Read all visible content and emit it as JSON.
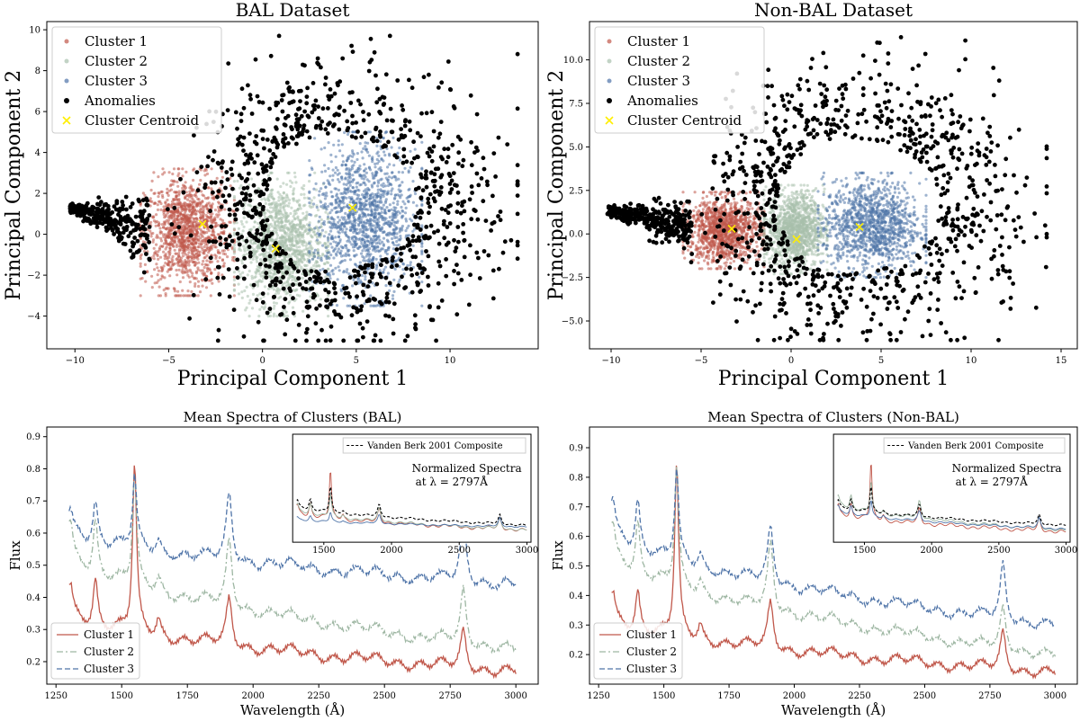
{
  "chart_data": [
    {
      "id": "bal_scatter",
      "type": "scatter",
      "title": "BAL Dataset",
      "xlabel": "Principal Component 1",
      "ylabel": "Principal Component 2",
      "xlim": [
        -11.5,
        14.7
      ],
      "ylim": [
        -5.6,
        10.4
      ],
      "xticks": [
        -10,
        -5,
        0,
        5,
        10
      ],
      "yticks": [
        -4,
        -2,
        0,
        2,
        4,
        6,
        8,
        10
      ],
      "legend": [
        "Cluster 1",
        "Cluster 2",
        "Cluster 3",
        "Anomalies",
        "Cluster Centroid"
      ],
      "legend_position": "upper-left",
      "colors": [
        "#c0574a",
        "#a8c0ac",
        "#4f74a8",
        "#000000",
        "#ffee00"
      ],
      "clusters": [
        {
          "name": "Cluster 1",
          "x_range": [
            -6.5,
            -1.5
          ],
          "y_range": [
            -3.0,
            3.2
          ],
          "n": 1300
        },
        {
          "name": "Cluster 2",
          "x_range": [
            -1.5,
            3.5
          ],
          "y_range": [
            -4.0,
            3.0
          ],
          "n": 1300
        },
        {
          "name": "Cluster 3",
          "x_range": [
            2.5,
            8.5
          ],
          "y_range": [
            -3.5,
            5.0
          ],
          "n": 1300
        }
      ],
      "centroids": [
        [
          -3.2,
          0.5
        ],
        [
          0.7,
          -0.7
        ],
        [
          4.8,
          1.3
        ]
      ],
      "anomalies_x_range": [
        -10.3,
        13.6
      ],
      "anomalies_y_range": [
        -5.2,
        9.7
      ]
    },
    {
      "id": "nonbal_scatter",
      "type": "scatter",
      "title": "Non-BAL Dataset",
      "xlabel": "Principal Component 1",
      "ylabel": "Principal Component 2",
      "xlim": [
        -11.2,
        15.9
      ],
      "ylim": [
        -6.6,
        12.2
      ],
      "xticks": [
        -10,
        -5,
        0,
        5,
        10,
        15
      ],
      "yticks": [
        -5.0,
        -2.5,
        0.0,
        2.5,
        5.0,
        7.5,
        10.0
      ],
      "legend": [
        "Cluster 1",
        "Cluster 2",
        "Cluster 3",
        "Anomalies",
        "Cluster Centroid"
      ],
      "legend_position": "upper-left",
      "colors": [
        "#c0574a",
        "#a8c0ac",
        "#4f74a8",
        "#000000",
        "#ffee00"
      ],
      "clusters": [
        {
          "name": "Cluster 1",
          "x_range": [
            -6.0,
            -1.5
          ],
          "y_range": [
            -2.0,
            2.4
          ],
          "n": 1200
        },
        {
          "name": "Cluster 2",
          "x_range": [
            -1.5,
            2.0
          ],
          "y_range": [
            -2.3,
            2.8
          ],
          "n": 1200
        },
        {
          "name": "Cluster 3",
          "x_range": [
            1.5,
            7.5
          ],
          "y_range": [
            -2.5,
            3.5
          ],
          "n": 1200
        }
      ],
      "centroids": [
        [
          -3.3,
          0.3
        ],
        [
          0.3,
          -0.3
        ],
        [
          3.8,
          0.4
        ]
      ],
      "anomalies_x_range": [
        -10.2,
        14.2
      ],
      "anomalies_y_range": [
        -6.1,
        11.3
      ]
    },
    {
      "id": "bal_spectra",
      "type": "line",
      "title": "Mean Spectra of Clusters (BAL)",
      "xlabel": "Wavelength (Å)",
      "ylabel": "Flux",
      "xlim": [
        1215,
        3085
      ],
      "ylim": [
        0.13,
        0.93
      ],
      "xticks": [
        1250,
        1500,
        1750,
        2000,
        2250,
        2500,
        2750,
        3000
      ],
      "yticks": [
        0.2,
        0.3,
        0.4,
        0.5,
        0.6,
        0.7,
        0.8,
        0.9
      ],
      "legend": [
        "Cluster 1",
        "Cluster 2",
        "Cluster 3"
      ],
      "legend_position": "lower-left",
      "series": [
        {
          "name": "Cluster 1",
          "style": "solid",
          "color": "#c0574a",
          "baseline": 0.36,
          "slope": 0.19,
          "lines": [
            [
              1305,
              0.09
            ],
            [
              1400,
              0.14
            ],
            [
              1549,
              0.52
            ],
            [
              1640,
              0.05
            ],
            [
              1909,
              0.14
            ],
            [
              2800,
              0.11
            ]
          ]
        },
        {
          "name": "Cluster 2",
          "style": "dashdot",
          "color": "#9db6a2",
          "baseline": 0.55,
          "slope": 0.31,
          "lines": [
            [
              1305,
              0.1
            ],
            [
              1400,
              0.16
            ],
            [
              1549,
              0.34
            ],
            [
              1640,
              0.04
            ],
            [
              1909,
              0.2
            ],
            [
              2800,
              0.16
            ]
          ]
        },
        {
          "name": "Cluster 3",
          "style": "dashed",
          "color": "#4f74a8",
          "baseline": 0.62,
          "slope": 0.18,
          "lines": [
            [
              1305,
              0.06
            ],
            [
              1400,
              0.12
            ],
            [
              1549,
              0.22
            ],
            [
              1640,
              0.03
            ],
            [
              1909,
              0.2
            ],
            [
              2800,
              0.2
            ]
          ]
        }
      ],
      "inset": {
        "xlim": [
          1270,
          3030
        ],
        "xticks": [
          1500,
          2000,
          2500,
          3000
        ],
        "legend": "Vanden Berk 2001 Composite",
        "annotation_line1": "Normalized Spectra",
        "annotation_line2": "at λ = 2797Å"
      }
    },
    {
      "id": "nonbal_spectra",
      "type": "line",
      "title": "Mean Spectra of Clusters (Non-BAL)",
      "xlabel": "Wavelength (Å)",
      "ylabel": "Flux",
      "xlim": [
        1215,
        3085
      ],
      "ylim": [
        0.1,
        0.97
      ],
      "xticks": [
        1250,
        1500,
        1750,
        2000,
        2250,
        2500,
        2750,
        3000
      ],
      "yticks": [
        0.2,
        0.3,
        0.4,
        0.5,
        0.6,
        0.7,
        0.8,
        0.9
      ],
      "legend": [
        "Cluster 1",
        "Cluster 2",
        "Cluster 3"
      ],
      "legend_position": "lower-left",
      "series": [
        {
          "name": "Cluster 1",
          "style": "solid",
          "color": "#c0574a",
          "baseline": 0.33,
          "slope": 0.19,
          "lines": [
            [
              1305,
              0.09
            ],
            [
              1400,
              0.13
            ],
            [
              1549,
              0.58
            ],
            [
              1640,
              0.05
            ],
            [
              1909,
              0.15
            ],
            [
              2800,
              0.12
            ]
          ]
        },
        {
          "name": "Cluster 2",
          "style": "dashdot",
          "color": "#9db6a2",
          "baseline": 0.56,
          "slope": 0.36,
          "lines": [
            [
              1305,
              0.1
            ],
            [
              1400,
              0.17
            ],
            [
              1549,
              0.4
            ],
            [
              1640,
              0.04
            ],
            [
              1909,
              0.22
            ],
            [
              2800,
              0.13
            ]
          ]
        },
        {
          "name": "Cluster 3",
          "style": "dashed",
          "color": "#4f74a8",
          "baseline": 0.64,
          "slope": 0.34,
          "lines": [
            [
              1305,
              0.1
            ],
            [
              1400,
              0.16
            ],
            [
              1549,
              0.3
            ],
            [
              1640,
              0.04
            ],
            [
              1909,
              0.18
            ],
            [
              2800,
              0.18
            ]
          ]
        }
      ],
      "inset": {
        "xlim": [
          1270,
          3030
        ],
        "xticks": [
          1500,
          2000,
          2500,
          3000
        ],
        "legend": "Vanden Berk 2001 Composite",
        "annotation_line1": "Normalized Spectra",
        "annotation_line2": "at λ = 2797Å"
      }
    }
  ]
}
